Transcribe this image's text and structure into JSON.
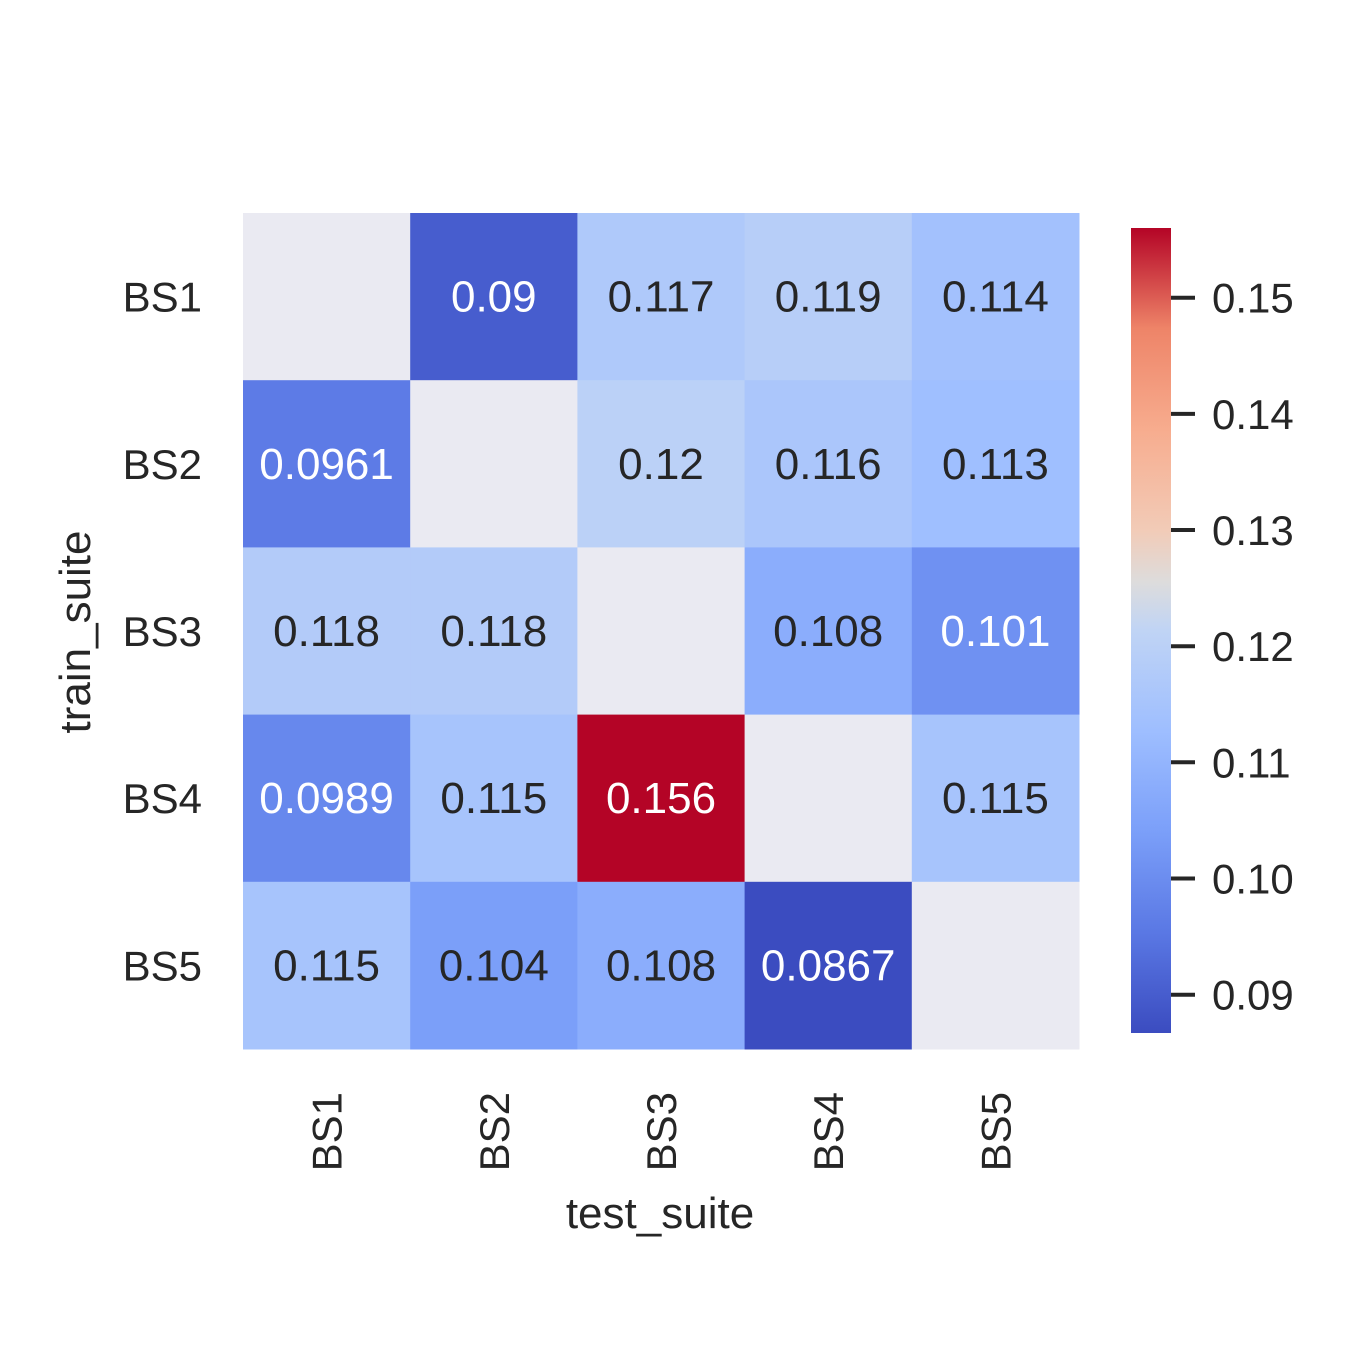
{
  "chart_data": {
    "type": "heatmap",
    "title": "",
    "xlabel": "test_suite",
    "ylabel": "train_suite",
    "x_categories": [
      "BS1",
      "BS2",
      "BS3",
      "BS4",
      "BS5"
    ],
    "y_categories": [
      "BS1",
      "BS2",
      "BS3",
      "BS4",
      "BS5"
    ],
    "values": [
      [
        null,
        0.09,
        0.117,
        0.119,
        0.114
      ],
      [
        0.0961,
        null,
        0.12,
        0.116,
        0.113
      ],
      [
        0.118,
        0.118,
        null,
        0.108,
        0.101
      ],
      [
        0.0989,
        0.115,
        0.156,
        null,
        0.115
      ],
      [
        0.115,
        0.104,
        0.108,
        0.0867,
        null
      ]
    ],
    "labels": [
      [
        "",
        "0.09",
        "0.117",
        "0.119",
        "0.114"
      ],
      [
        "0.0961",
        "",
        "0.12",
        "0.116",
        "0.113"
      ],
      [
        "0.118",
        "0.118",
        "",
        "0.108",
        "0.101"
      ],
      [
        "0.0989",
        "0.115",
        "0.156",
        "",
        "0.115"
      ],
      [
        "0.115",
        "0.104",
        "0.108",
        "0.0867",
        ""
      ]
    ],
    "colormap": "coolwarm",
    "missing_color": "#eaeaf2",
    "vmin": 0.0867,
    "vmax": 0.156,
    "colorbar_ticks": [
      0.09,
      0.1,
      0.11,
      0.12,
      0.13,
      0.14,
      0.15
    ],
    "colorbar_tick_labels": [
      "0.09",
      "0.10",
      "0.11",
      "0.12",
      "0.13",
      "0.14",
      "0.15"
    ]
  }
}
